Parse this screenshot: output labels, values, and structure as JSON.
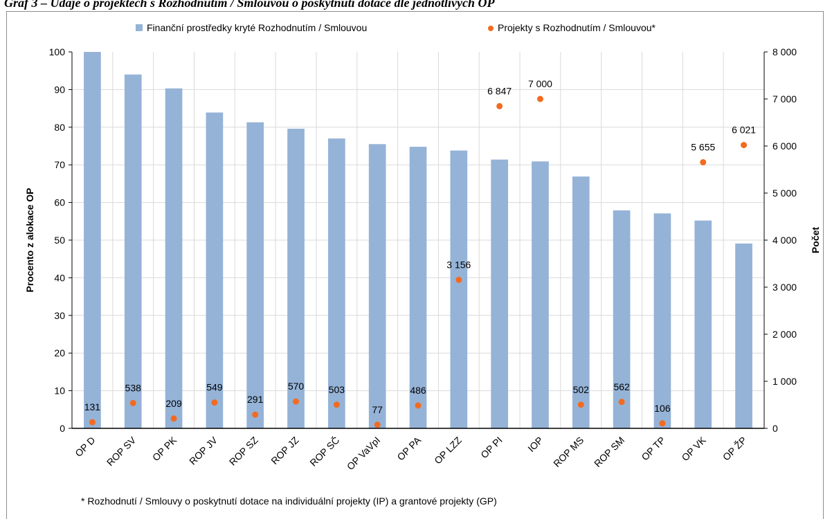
{
  "title": "Graf 3 – Údaje o projektech s Rozhodnutím / Smlouvou o poskytnutí dotace dle jednotlivých OP",
  "footnote": "* Rozhodnutí / Smlouvy o poskytnutí dotace na individuální projekty (IP) a grantové projekty (GP)",
  "colors": {
    "bars": "#95b3d7",
    "points": "#f26b21",
    "grid": "#d9d9d9"
  },
  "chart_data": {
    "type": "bar",
    "categories": [
      "OP D",
      "ROP SV",
      "OP PK",
      "ROP JV",
      "ROP SZ",
      "ROP JZ",
      "ROP SČ",
      "OP VaVpI",
      "OP PA",
      "OP LZZ",
      "OP PI",
      "IOP",
      "ROP MS",
      "ROP SM",
      "OP TP",
      "OP VK",
      "OP ŽP"
    ],
    "series": [
      {
        "name": "Finanční prostředky kryté Rozhodnutím / Smlouvou",
        "type": "bar",
        "axis": "left",
        "values": [
          100,
          94,
          90.3,
          83.9,
          81.3,
          79.6,
          77,
          75.5,
          74.8,
          73.8,
          71.4,
          70.9,
          66.9,
          57.9,
          57.1,
          55.2,
          49.1
        ]
      },
      {
        "name": "Projekty s Rozhodnutím / Smlouvou*",
        "type": "scatter",
        "axis": "right",
        "values": [
          131,
          538,
          209,
          549,
          291,
          570,
          503,
          77,
          486,
          3156,
          6847,
          7000,
          502,
          562,
          106,
          5655,
          6021
        ],
        "labels": [
          "131",
          "538",
          "209",
          "549",
          "291",
          "570",
          "503",
          "77",
          "486",
          "3 156",
          "6 847",
          "7 000",
          "502",
          "562",
          "106",
          "5 655",
          "6 021"
        ]
      }
    ],
    "ylabel": "Procento z alokace OP",
    "y2label": "Počet",
    "ylim": [
      0,
      100
    ],
    "y2lim": [
      0,
      8000
    ],
    "yticks": [
      "0",
      "10",
      "20",
      "30",
      "40",
      "50",
      "60",
      "70",
      "80",
      "90",
      "100"
    ],
    "y2ticks": [
      "0",
      "1 000",
      "2 000",
      "3 000",
      "4 000",
      "5 000",
      "6 000",
      "7 000",
      "8 000"
    ],
    "grid": true,
    "legend_position": "top"
  }
}
